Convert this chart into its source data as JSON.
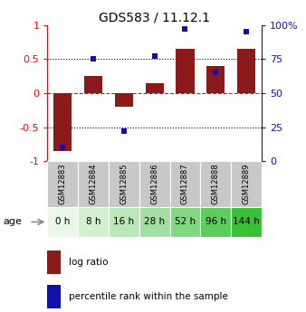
{
  "title": "GDS583 / 11.12.1",
  "samples": [
    "GSM12883",
    "GSM12884",
    "GSM12885",
    "GSM12886",
    "GSM12887",
    "GSM12888",
    "GSM12889"
  ],
  "ages": [
    "0 h",
    "8 h",
    "16 h",
    "28 h",
    "52 h",
    "96 h",
    "144 h"
  ],
  "log_ratio": [
    -0.85,
    0.25,
    -0.2,
    0.15,
    0.65,
    0.4,
    0.65
  ],
  "percentile_rank": [
    10,
    75,
    22,
    77,
    97,
    65,
    95
  ],
  "bar_color": "#8B1A1A",
  "dot_color": "#1111AA",
  "ylim_left": [
    -1,
    1
  ],
  "ylim_right": [
    0,
    100
  ],
  "yticks_left": [
    -1,
    -0.5,
    0,
    0.5,
    1
  ],
  "yticks_right": [
    0,
    25,
    50,
    75,
    100
  ],
  "yticklabels_right": [
    "0",
    "25",
    "50",
    "75",
    "100%"
  ],
  "yticklabels_left": [
    "-1",
    "-0.5",
    "0",
    "0.5",
    "1"
  ],
  "dotted_lines": [
    -0.5,
    0.5
  ],
  "zero_line_color": "#FF0000",
  "dotted_line_color": "#000000",
  "age_colors": [
    "#e8f8e8",
    "#d0f0d0",
    "#b8e8b8",
    "#a0e0a0",
    "#80d880",
    "#5ccc5c",
    "#38c038"
  ],
  "sample_bg_color": "#c8c8c8",
  "sample_border_color": "#aaaaaa",
  "legend_log_ratio": "log ratio",
  "legend_percentile": "percentile rank within the sample"
}
